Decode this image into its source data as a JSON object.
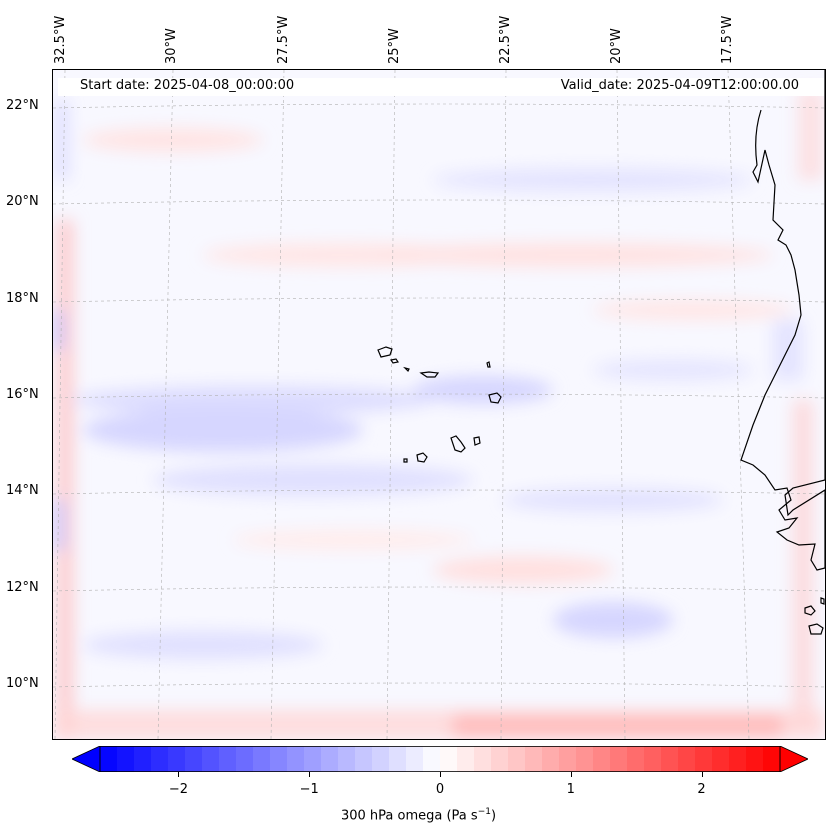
{
  "map": {
    "start_date": "Start date: 2025-04-08_00:00:00",
    "valid_date": "Valid_date: 2025-04-09T12:00:00.00",
    "lon_labels": [
      "32.5°W",
      "30°W",
      "27.5°W",
      "25°W",
      "22.5°W",
      "20°W",
      "17.5°W"
    ],
    "lat_labels": [
      "22°N",
      "20°N",
      "18°N",
      "16°N",
      "14°N",
      "12°N",
      "10°N"
    ],
    "variable": "300 hPa omega",
    "units": "Pa s",
    "units_exponent": "−1",
    "colormap": "bwr",
    "colors": {
      "min": "#0000ff",
      "mid": "#ffffff",
      "max": "#ff0000",
      "coast": "#000000",
      "grid": "#b0b0b0"
    }
  },
  "colorbar": {
    "min": -2.6,
    "max": 2.6,
    "ticks": [
      {
        "value": -2,
        "label": "−2"
      },
      {
        "value": -1,
        "label": "−1"
      },
      {
        "value": 0,
        "label": "0"
      },
      {
        "value": 1,
        "label": "1"
      },
      {
        "value": 2,
        "label": "2"
      }
    ],
    "levels": 40,
    "extend": "both"
  }
}
